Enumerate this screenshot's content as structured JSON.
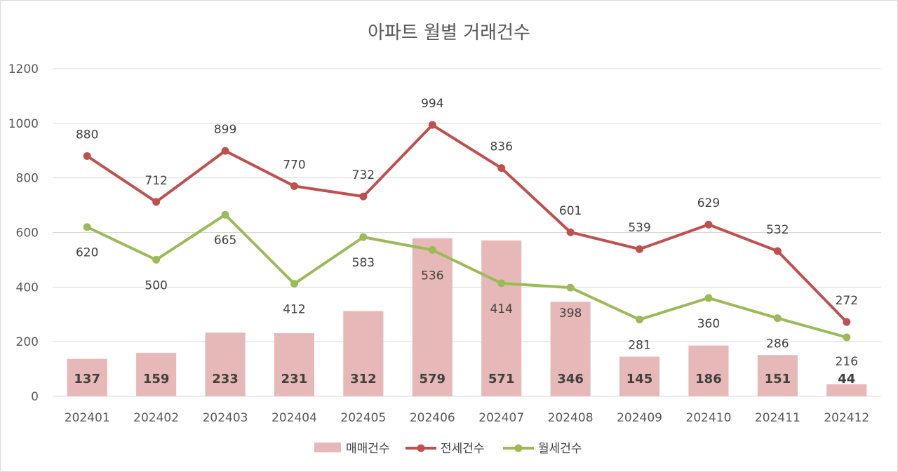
{
  "chart_data": {
    "type": "bar",
    "title": "아파트 월별 거래건수",
    "categories": [
      "202401",
      "202402",
      "202403",
      "202404",
      "202405",
      "202406",
      "202407",
      "202408",
      "202409",
      "202410",
      "202411",
      "202412"
    ],
    "ylim": [
      0,
      1200
    ],
    "yticks": [
      0,
      200,
      400,
      600,
      800,
      1000,
      1200
    ],
    "grid": true,
    "legend_position": "bottom",
    "series": [
      {
        "name": "매매건수",
        "kind": "bar",
        "color": "#e6b8b7",
        "values": [
          137,
          159,
          233,
          231,
          312,
          579,
          571,
          346,
          145,
          186,
          151,
          44
        ]
      },
      {
        "name": "전세건수",
        "kind": "line",
        "color": "#c0504d",
        "values": [
          880,
          712,
          899,
          770,
          732,
          994,
          836,
          601,
          539,
          629,
          532,
          272
        ]
      },
      {
        "name": "월세건수",
        "kind": "line",
        "color": "#9bbb59",
        "values": [
          620,
          500,
          665,
          412,
          583,
          536,
          414,
          398,
          281,
          360,
          286,
          216
        ]
      }
    ]
  }
}
